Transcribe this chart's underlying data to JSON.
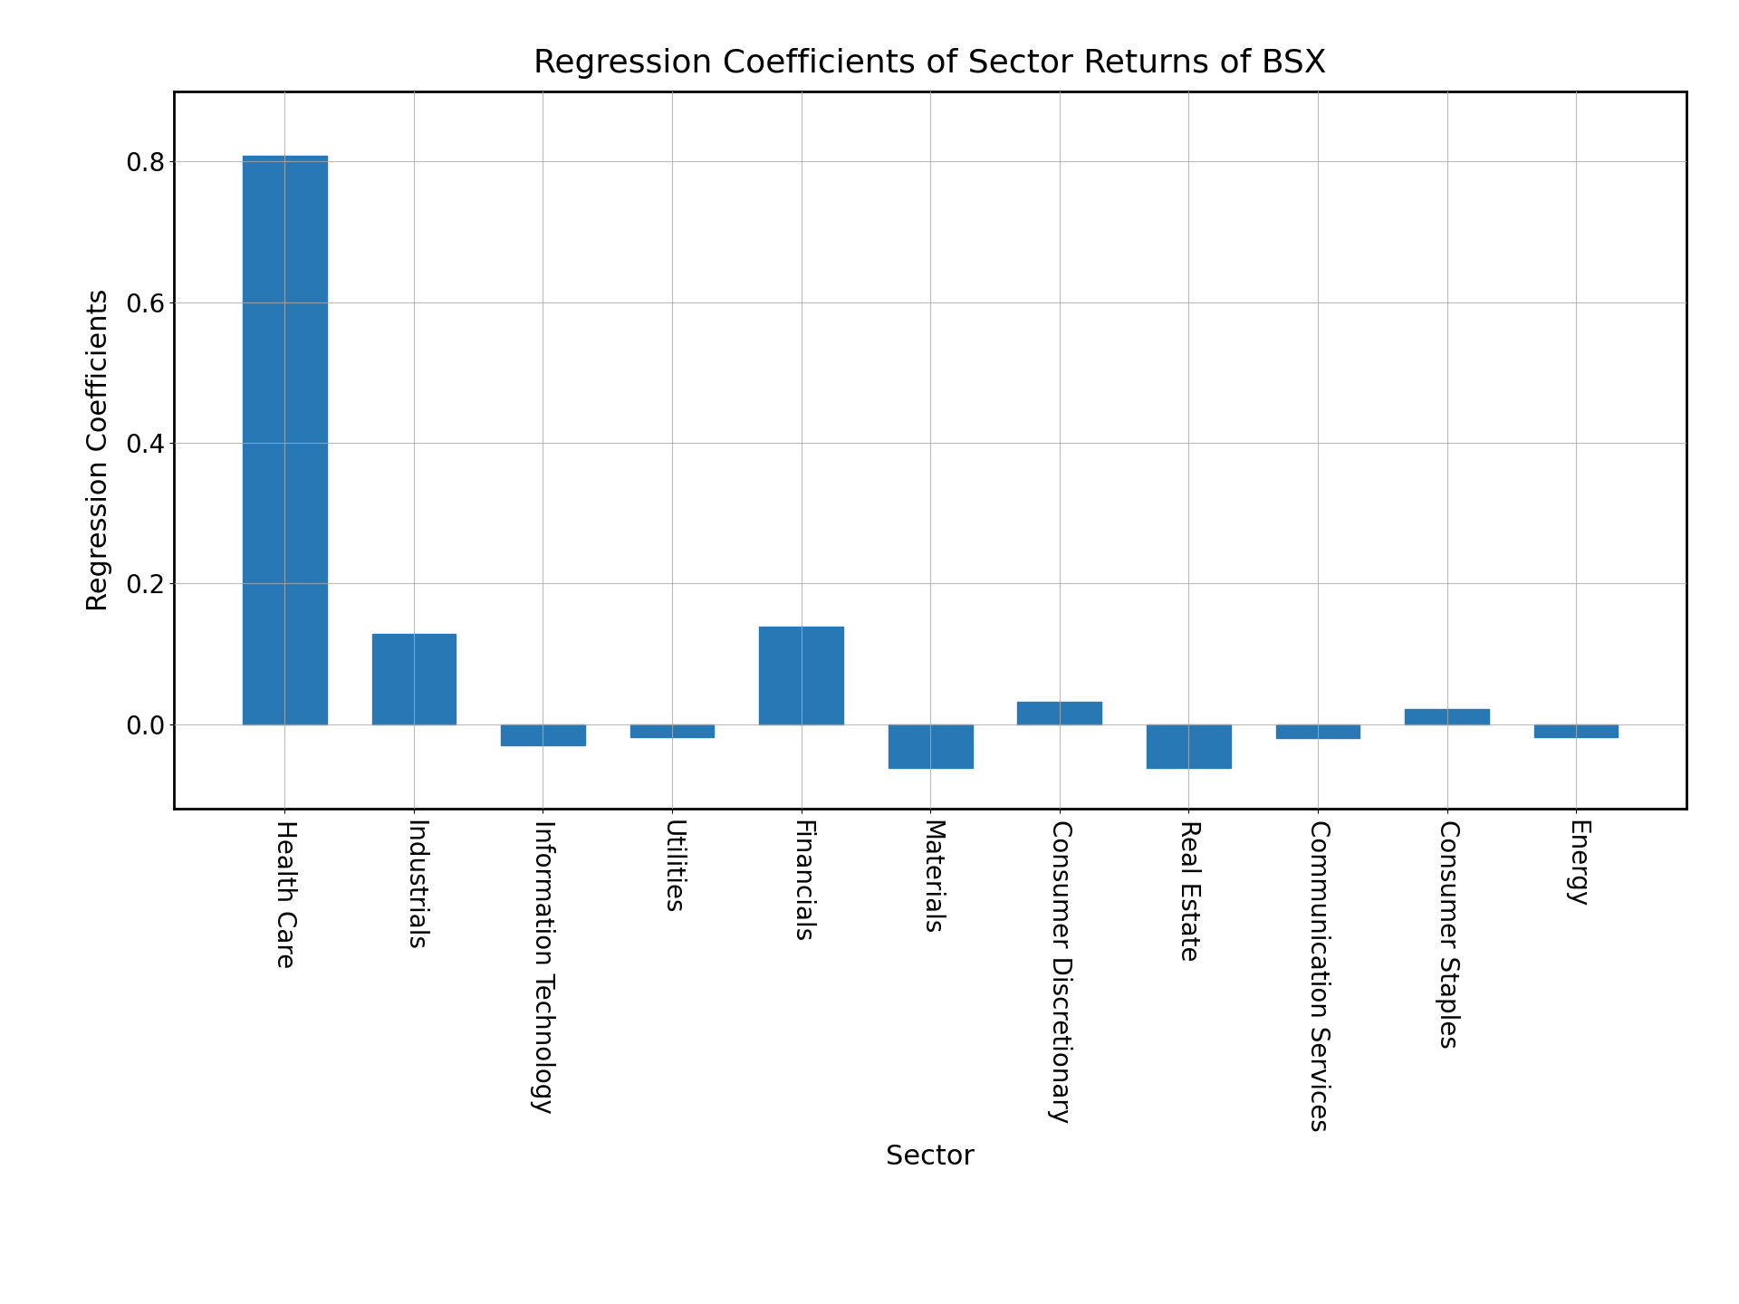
{
  "categories": [
    "Health Care",
    "Industrials",
    "Information Technology",
    "Utilities",
    "Financials",
    "Materials",
    "Consumer Discretionary",
    "Real Estate",
    "Communication Services",
    "Consumer Staples",
    "Energy"
  ],
  "values": [
    0.808,
    0.128,
    -0.03,
    -0.018,
    0.138,
    -0.062,
    0.032,
    -0.062,
    -0.02,
    0.022,
    -0.018
  ],
  "bar_color": "#2878b5",
  "title": "Regression Coefficients of Sector Returns of BSX",
  "xlabel": "Sector",
  "ylabel": "Regression Coefficients",
  "title_fontsize": 26,
  "label_fontsize": 22,
  "tick_fontsize": 20,
  "yticks": [
    0.0,
    0.2,
    0.4,
    0.6,
    0.8
  ],
  "ylim": [
    -0.12,
    0.9
  ],
  "bar_width": 0.65,
  "background_color": "#ffffff",
  "grid_color": "#aaaaaa",
  "spine_linewidth": 2.0
}
